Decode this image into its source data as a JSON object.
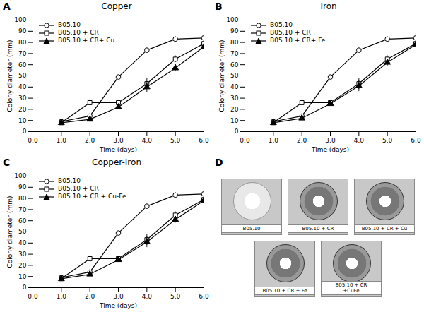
{
  "chart_data": [
    {
      "type": "line",
      "title": "Copper",
      "annotations": [
        "A"
      ],
      "xlabel": "Time (days)",
      "ylabel": "Colony diameter (mm)",
      "x": [
        1,
        2,
        3,
        4,
        5,
        6
      ],
      "series": [
        {
          "name": "B05.10",
          "color": "black",
          "marker": "open_circle",
          "line_style": "solid",
          "values": [
            9,
            14,
            49,
            73,
            83,
            84
          ],
          "errors": [
            1,
            1,
            1,
            2,
            2,
            2
          ]
        },
        {
          "name": "B05.10 + CR",
          "color": "black",
          "marker": "open_square",
          "line_style": "solid",
          "values": [
            8,
            26,
            26,
            43,
            65,
            79
          ],
          "errors": [
            1,
            2,
            2,
            5,
            3,
            2
          ]
        },
        {
          "name": "B05.10 + CR+ Cu",
          "color": "black",
          "marker": "filled_triangle",
          "line_style": "solid",
          "values": [
            8,
            11,
            22,
            40,
            57,
            76
          ],
          "errors": [
            1,
            1,
            2,
            5,
            3,
            2
          ]
        }
      ],
      "xlim": [
        0,
        6
      ],
      "xticks": [
        0,
        1,
        2,
        3,
        4,
        5,
        6
      ],
      "ylim": [
        0,
        100
      ],
      "yticks": [
        0,
        10,
        20,
        30,
        40,
        50,
        60,
        70,
        80,
        90,
        100
      ],
      "grid": false,
      "legend": "upper left"
    },
    {
      "type": "line",
      "title": "Iron",
      "annotations": [
        "B"
      ],
      "xlabel": "Time (days)",
      "ylabel": "Colony diameter (mm)",
      "x": [
        1,
        2,
        3,
        4,
        5,
        6
      ],
      "series": [
        {
          "name": "B05.10",
          "color": "black",
          "marker": "open_circle",
          "line_style": "solid",
          "values": [
            9,
            14,
            49,
            73,
            83,
            84
          ],
          "errors": [
            1,
            1,
            1,
            2,
            2,
            2
          ]
        },
        {
          "name": "B05.10 + CR",
          "color": "black",
          "marker": "open_square",
          "line_style": "solid",
          "values": [
            8,
            26,
            26,
            43,
            65,
            79
          ],
          "errors": [
            1,
            2,
            2,
            5,
            3,
            2
          ]
        },
        {
          "name": "B05.10 + CR+ Fe",
          "color": "black",
          "marker": "filled_triangle",
          "line_style": "solid",
          "values": [
            8,
            12,
            25,
            41,
            62,
            78
          ],
          "errors": [
            1,
            1,
            2,
            5,
            3,
            2
          ]
        }
      ],
      "xlim": [
        0,
        6
      ],
      "xticks": [
        0,
        1,
        2,
        3,
        4,
        5,
        6
      ],
      "ylim": [
        0,
        100
      ],
      "yticks": [
        0,
        10,
        20,
        30,
        40,
        50,
        60,
        70,
        80,
        90,
        100
      ],
      "grid": false,
      "legend": "upper left"
    },
    {
      "type": "line",
      "title": "Copper-Iron",
      "annotations": [
        "C"
      ],
      "xlabel": "Time (days)",
      "ylabel": "Colony diameter (mm)",
      "x": [
        1,
        2,
        3,
        4,
        5,
        6
      ],
      "series": [
        {
          "name": "B05.10",
          "color": "black",
          "marker": "open_circle",
          "line_style": "solid",
          "values": [
            9,
            14,
            49,
            73,
            83,
            84
          ],
          "errors": [
            1,
            1,
            1,
            2,
            2,
            2
          ]
        },
        {
          "name": "B05.10 + CR",
          "color": "black",
          "marker": "open_square",
          "line_style": "solid",
          "values": [
            8,
            26,
            26,
            43,
            65,
            79
          ],
          "errors": [
            1,
            2,
            2,
            5,
            3,
            2
          ]
        },
        {
          "name": "B05.10 + CR + Cu-Fe",
          "color": "black",
          "marker": "filled_triangle",
          "line_style": "solid",
          "values": [
            8,
            12,
            25,
            41,
            61,
            78
          ],
          "errors": [
            1,
            1,
            2,
            5,
            3,
            2
          ]
        }
      ],
      "xlim": [
        0,
        6
      ],
      "xticks": [
        0,
        1,
        2,
        3,
        4,
        5,
        6
      ],
      "ylim": [
        0,
        100
      ],
      "yticks": [
        0,
        10,
        20,
        30,
        40,
        50,
        60,
        70,
        80,
        90,
        100
      ],
      "grid": false,
      "legend": "upper left"
    },
    {
      "type": "image",
      "annotations": [
        "D"
      ],
      "categories": [
        "B05.10",
        "B05.10 + CR",
        "B05.10 + CR + Cu",
        "B05.10 + CR + Fe",
        "B05.10 + CR\n+CuFe"
      ]
    }
  ]
}
